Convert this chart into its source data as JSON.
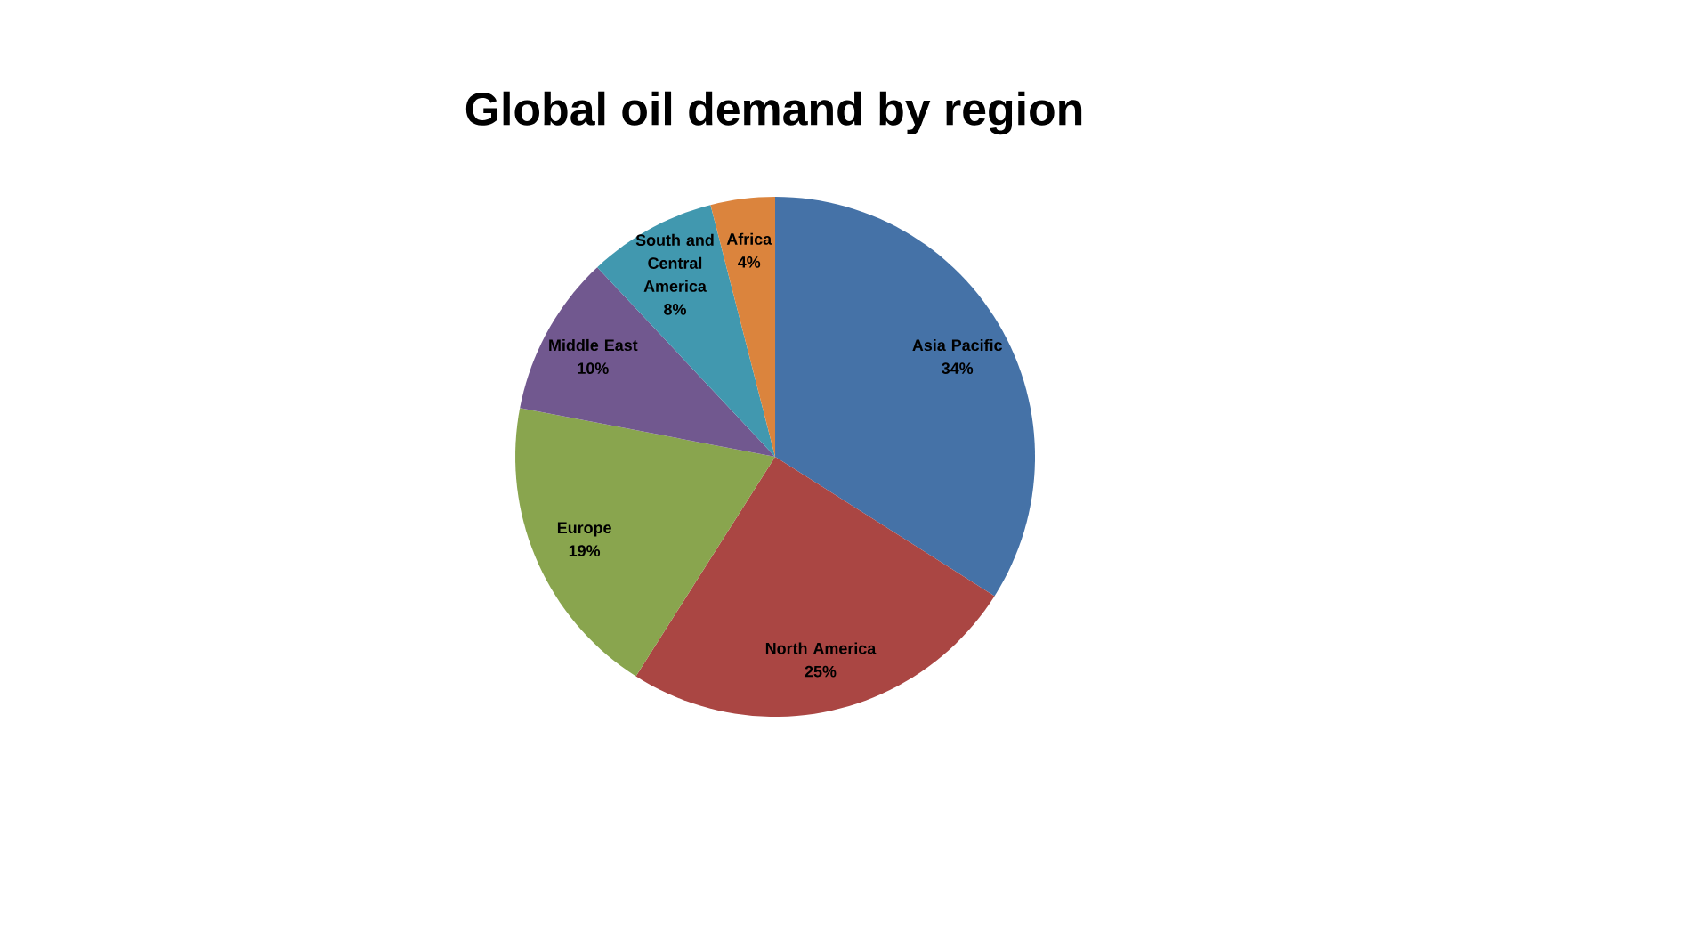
{
  "chart_data": {
    "type": "pie",
    "title": "Global oil demand by region",
    "categories": [
      "Asia Pacific",
      "North America",
      "Europe",
      "Middle East",
      "South and Central America",
      "Africa"
    ],
    "values": [
      34,
      25,
      19,
      10,
      8,
      4
    ],
    "value_labels": [
      "34%",
      "25%",
      "19%",
      "10%",
      "8%",
      "4%"
    ],
    "colors": [
      "#4572a7",
      "#aa4643",
      "#89a54e",
      "#71588f",
      "#4198af",
      "#db843d"
    ]
  }
}
